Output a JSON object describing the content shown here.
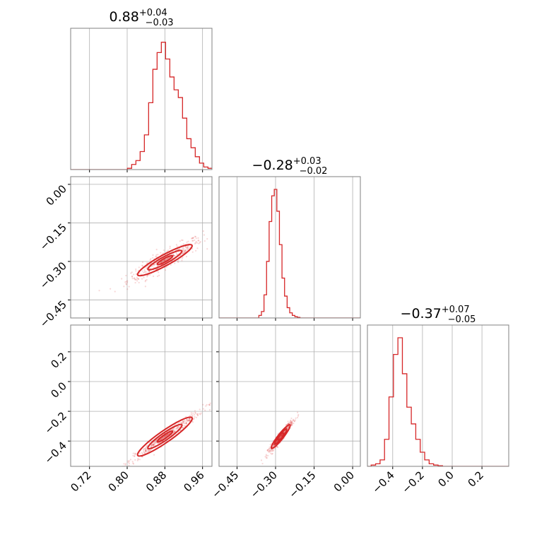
{
  "chart_data": {
    "type": "corner",
    "color": "#d62728",
    "grid": true,
    "parameters": [
      {
        "title": {
          "median": "0.88",
          "plus": "+0.04",
          "minus": "−0.03"
        },
        "range": [
          0.68,
          0.98
        ],
        "ticks": [
          0.72,
          0.8,
          0.88,
          0.96
        ],
        "tick_labels": [
          "0.72",
          "0.80",
          "0.88",
          "0.96"
        ],
        "hist": {
          "x": [
            0.688,
            0.697,
            0.706,
            0.715,
            0.724,
            0.733,
            0.742,
            0.751,
            0.76,
            0.769,
            0.778,
            0.787,
            0.796,
            0.805,
            0.814,
            0.823,
            0.832,
            0.841,
            0.85,
            0.859,
            0.868,
            0.877,
            0.886,
            0.895,
            0.904,
            0.913,
            0.922,
            0.931,
            0.94,
            0.949,
            0.958,
            0.967,
            0.976
          ],
          "values": [
            0,
            0,
            0,
            0,
            0,
            0,
            0,
            0,
            0,
            0,
            0,
            0,
            0,
            0.01,
            0.04,
            0.07,
            0.14,
            0.27,
            0.52,
            0.78,
            0.91,
            0.99,
            0.86,
            0.72,
            0.62,
            0.56,
            0.4,
            0.24,
            0.17,
            0.1,
            0.05,
            0.02,
            0.01
          ]
        }
      },
      {
        "title": {
          "median": "−0.28",
          "plus": "+0.03",
          "minus": "−0.02"
        },
        "range": [
          -0.52,
          0.03
        ],
        "ticks": [
          -0.45,
          -0.3,
          -0.15,
          0.0
        ],
        "tick_labels": [
          "−0.45",
          "−0.30",
          "−0.15",
          "0.00"
        ],
        "hist": {
          "x": [
            -0.36,
            -0.35,
            -0.34,
            -0.33,
            -0.32,
            -0.31,
            -0.3,
            -0.29,
            -0.28,
            -0.27,
            -0.26,
            -0.25,
            -0.24,
            -0.23,
            -0.22,
            -0.21,
            -0.2,
            -0.19
          ],
          "values": [
            0.02,
            0.05,
            0.18,
            0.44,
            0.75,
            0.95,
            1.0,
            0.83,
            0.57,
            0.31,
            0.17,
            0.08,
            0.04,
            0.02,
            0.01,
            0.005,
            0,
            0
          ]
        }
      },
      {
        "title": {
          "median": "−0.37",
          "plus": "+0.07",
          "minus": "−0.05"
        },
        "range": [
          -0.57,
          0.38
        ],
        "ticks": [
          -0.4,
          -0.2,
          0.0,
          0.2
        ],
        "tick_labels": [
          "−0.4",
          "−0.2",
          "0.0",
          "0.2"
        ],
        "hist": {
          "x": [
            -0.56,
            -0.53,
            -0.5,
            -0.47,
            -0.44,
            -0.41,
            -0.38,
            -0.35,
            -0.32,
            -0.29,
            -0.26,
            -0.23,
            -0.2,
            -0.17,
            -0.14,
            -0.11,
            -0.08,
            -0.05
          ],
          "values": [
            0,
            0.01,
            0.02,
            0.05,
            0.21,
            0.54,
            0.87,
            1.0,
            0.72,
            0.46,
            0.33,
            0.21,
            0.11,
            0.05,
            0.02,
            0.01,
            0.005,
            0
          ]
        }
      }
    ],
    "pairs": [
      {
        "x_param": 0,
        "y_param": 1,
        "center": [
          0.88,
          -0.295
        ],
        "slope": 1.0,
        "spread_major": 0.04,
        "spread_minor": 0.006
      },
      {
        "x_param": 0,
        "y_param": 2,
        "center": [
          0.88,
          -0.37
        ],
        "slope": 2.2,
        "spread_major": 0.04,
        "spread_minor": 0.006
      },
      {
        "x_param": 1,
        "y_param": 2,
        "center": [
          -0.28,
          -0.37
        ],
        "slope": 2.2,
        "spread_major": 0.025,
        "spread_minor": 0.005
      }
    ]
  }
}
